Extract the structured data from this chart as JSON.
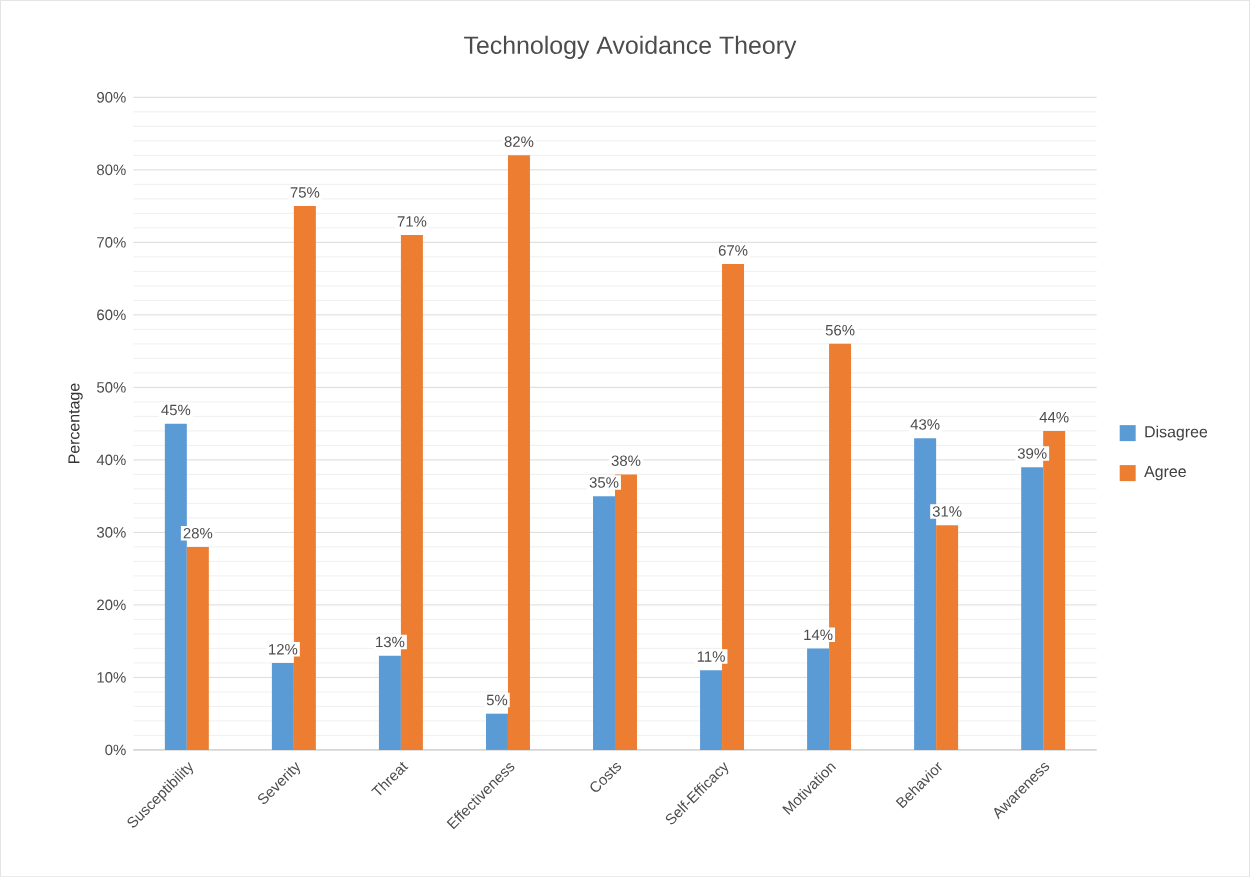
{
  "chart_data": {
    "type": "bar",
    "title": "Technology Avoidance Theory",
    "ylabel": "Percentage",
    "categories": [
      "Susceptibility",
      "Severity",
      "Threat",
      "Effectiveness",
      "Costs",
      "Self-Efficacy",
      "Motivation",
      "Behavior",
      "Awareness"
    ],
    "series": [
      {
        "name": "Disagree",
        "color": "#5b9bd5",
        "values": [
          45,
          12,
          13,
          5,
          35,
          11,
          14,
          43,
          39
        ],
        "value_labels": [
          "45%",
          "12%",
          "13%",
          "5%",
          "35%",
          "11%",
          "14%",
          "43%",
          "39%"
        ]
      },
      {
        "name": "Agree",
        "color": "#ed7d31",
        "values": [
          28,
          75,
          71,
          82,
          38,
          67,
          56,
          31,
          44
        ],
        "value_labels": [
          "28%",
          "75%",
          "71%",
          "82%",
          "38%",
          "67%",
          "56%",
          "31%",
          "44%"
        ]
      }
    ],
    "ylim": [
      0,
      90
    ],
    "yticks": [
      {
        "value": 0,
        "label": "0%"
      },
      {
        "value": 10,
        "label": "10%"
      },
      {
        "value": 20,
        "label": "20%"
      },
      {
        "value": 30,
        "label": "30%"
      },
      {
        "value": 40,
        "label": "40%"
      },
      {
        "value": 50,
        "label": "50%"
      },
      {
        "value": 60,
        "label": "60%"
      },
      {
        "value": 70,
        "label": "70%"
      },
      {
        "value": 80,
        "label": "80%"
      },
      {
        "value": 90,
        "label": "90%"
      }
    ],
    "grid": "y",
    "legend": "right"
  }
}
